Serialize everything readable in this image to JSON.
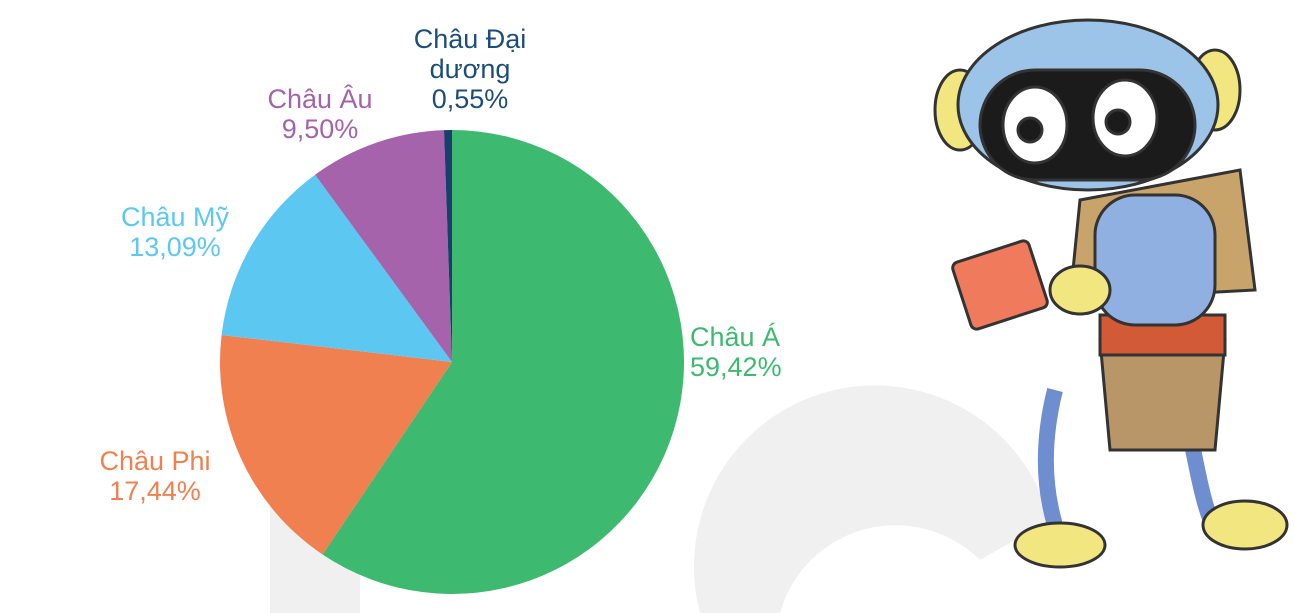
{
  "chart_data": {
    "type": "pie",
    "categories": [
      "Châu Á",
      "Châu Phi",
      "Châu Mỹ",
      "Châu Âu",
      "Châu Đại dương"
    ],
    "values": [
      59.42,
      17.44,
      13.09,
      9.5,
      0.55
    ],
    "value_labels": [
      "59,42%",
      "17,44%",
      "13,09%",
      "9,50%",
      "0,55%"
    ],
    "colors": [
      "#3dba6f",
      "#f0804f",
      "#5cc8f2",
      "#a463ab",
      "#1a3d6e"
    ],
    "label_colors": [
      "#3dba6f",
      "#f0804f",
      "#5cc8f2",
      "#a463ab",
      "#1d4e7a"
    ]
  }
}
